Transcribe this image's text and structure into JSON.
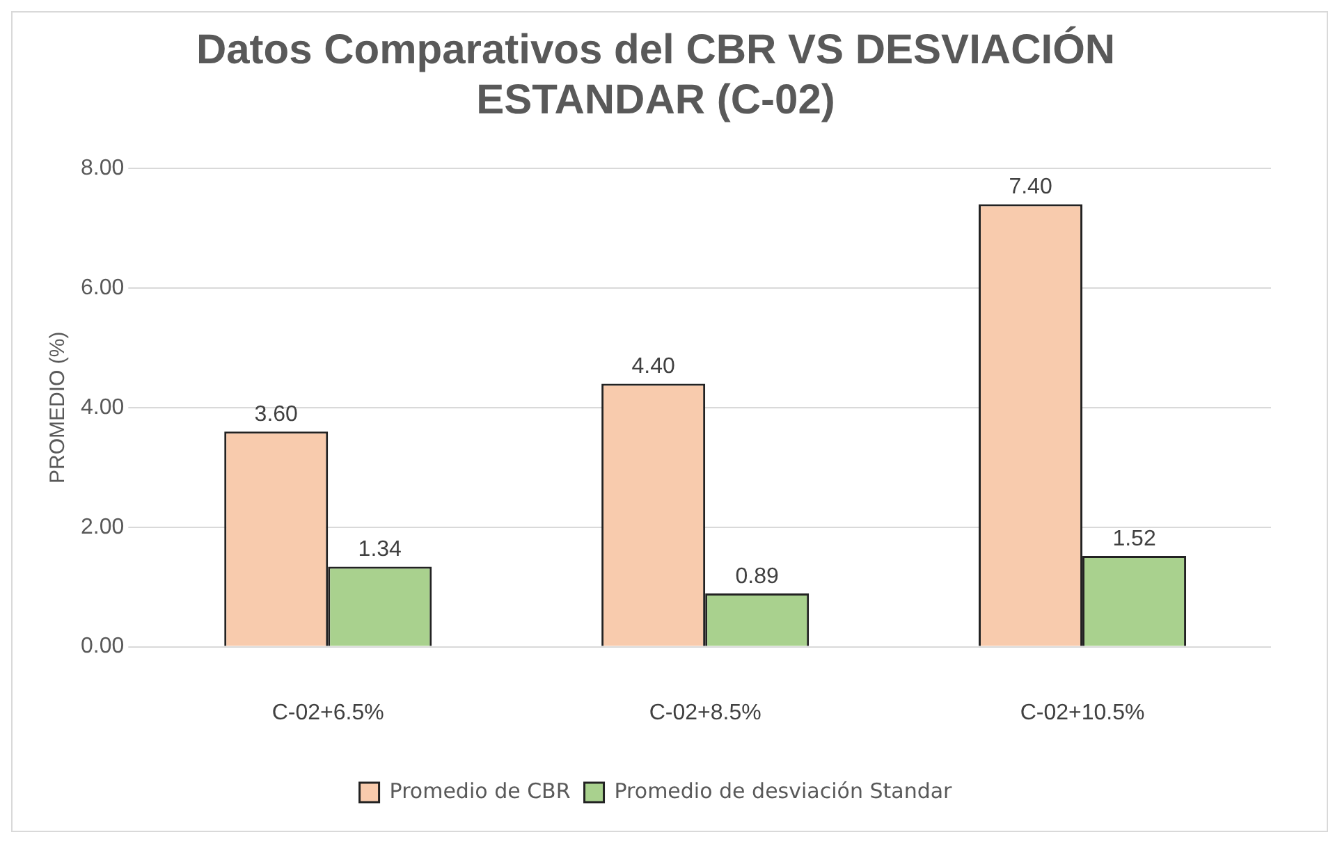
{
  "chart_data": {
    "type": "bar",
    "title": [
      "Datos Comparativos del CBR VS DESVIACIÓN",
      "ESTANDAR (C-02)"
    ],
    "ylabel": "PROMEDIO (%)",
    "categories": [
      "C-02+6.5%",
      "C-02+8.5%",
      "C-02+10.5%"
    ],
    "series": [
      {
        "name": "Promedio de CBR",
        "color": "#f8cbad",
        "values": [
          3.6,
          4.4,
          7.4
        ],
        "value_labels": [
          "3.60",
          "4.40",
          "7.40"
        ]
      },
      {
        "name": "Promedio de desviación Standar",
        "color": "#a9d18e",
        "values": [
          1.34,
          0.89,
          1.52
        ],
        "value_labels": [
          "1.34",
          "0.89",
          "1.52"
        ]
      }
    ],
    "ylim": [
      0,
      8
    ],
    "yticks": [
      {
        "value": 0,
        "label": "0.00"
      },
      {
        "value": 2,
        "label": "2.00"
      },
      {
        "value": 4,
        "label": "4.00"
      },
      {
        "value": 6,
        "label": "6.00"
      },
      {
        "value": 8,
        "label": "8.00"
      }
    ],
    "grid": "y",
    "legend": "bottom"
  }
}
